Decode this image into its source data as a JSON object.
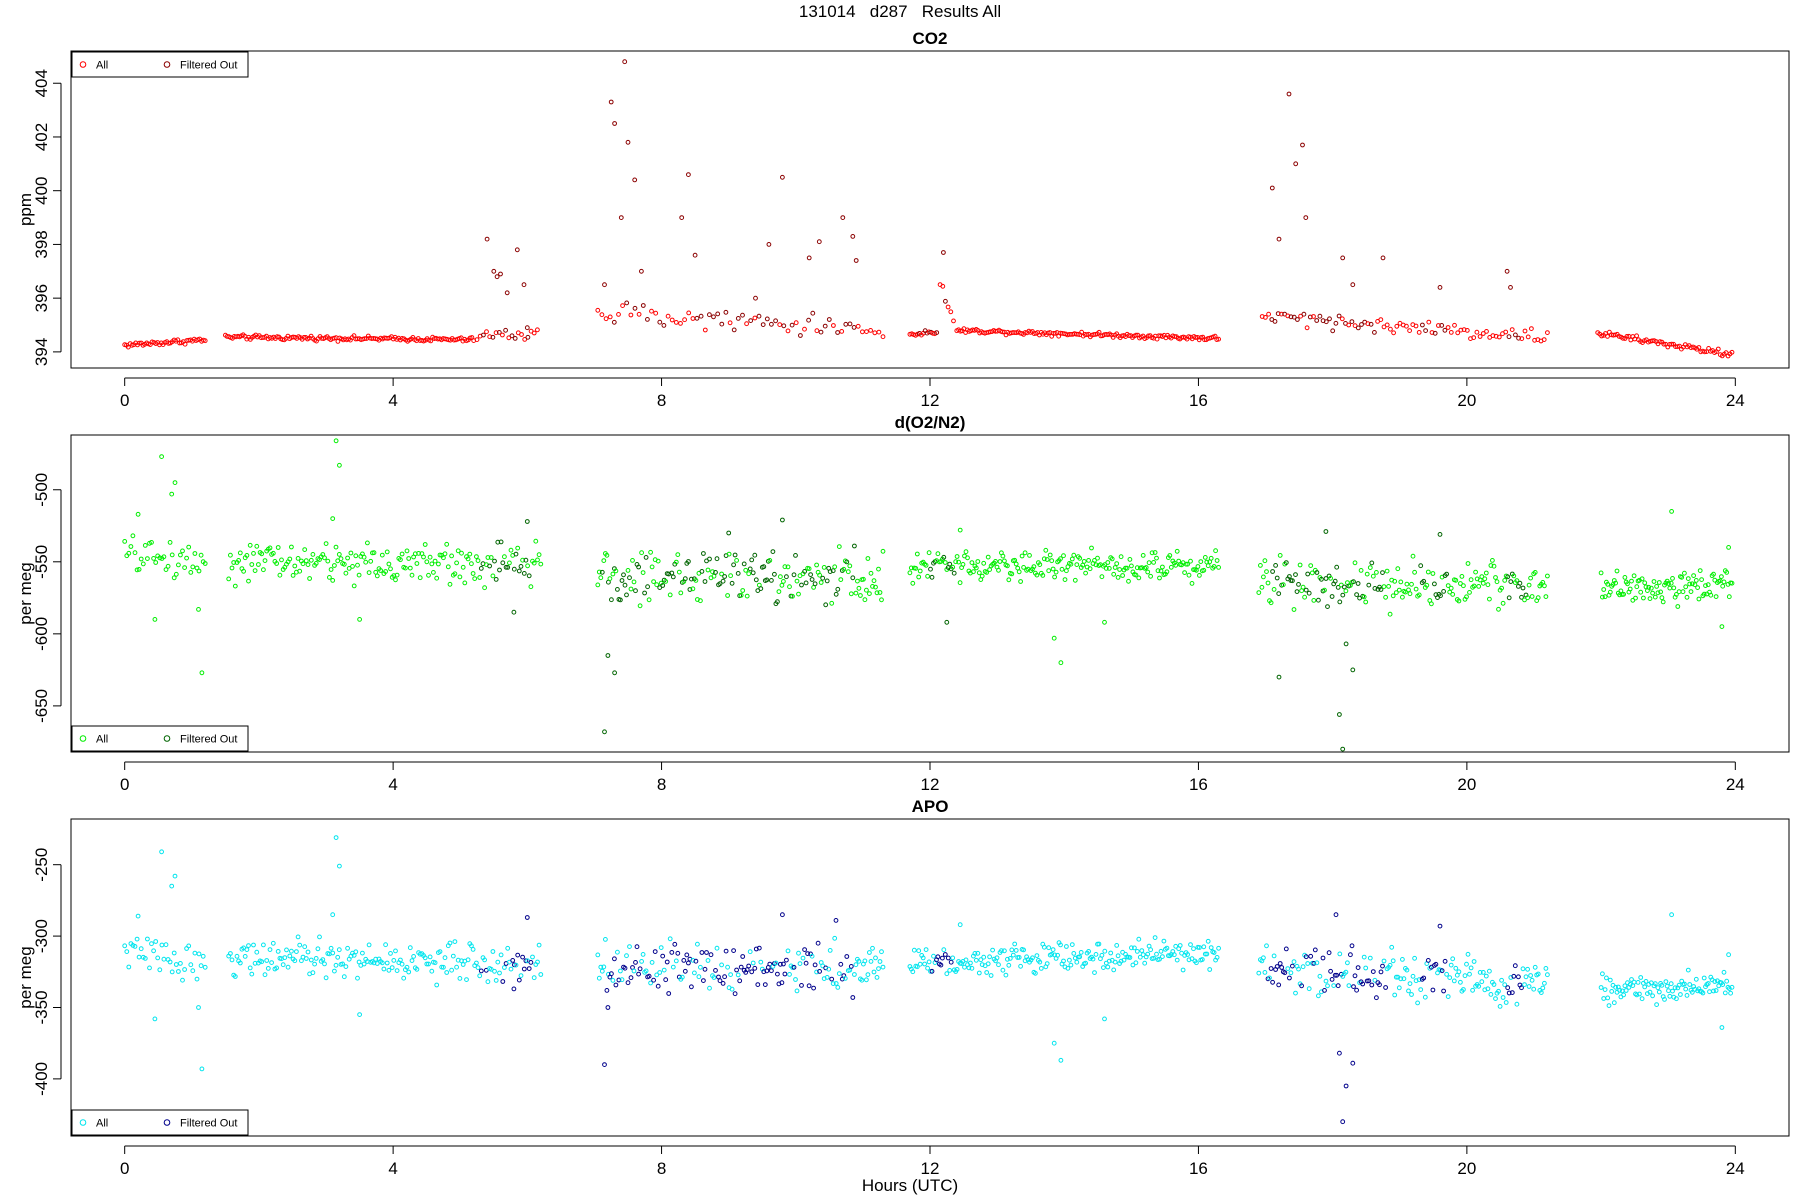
{
  "figure": {
    "title_parts": [
      "131014",
      "d287",
      "Results All"
    ],
    "xlabel": "Hours (UTC)"
  },
  "chart_data": [
    {
      "type": "scatter",
      "title": "CO2",
      "ylabel": "ppm",
      "xlim": [
        -0.8,
        24.8
      ],
      "ylim": [
        393.4,
        405.2
      ],
      "xticks": [
        0,
        4,
        8,
        12,
        16,
        20,
        24
      ],
      "yticks": [
        394,
        396,
        398,
        400,
        402,
        404
      ],
      "grid": false,
      "legend_position": "top-left",
      "series": [
        {
          "name": "All",
          "color": "#ff0000",
          "segments": [
            {
              "x": [
                0.0,
                1.2
              ],
              "base": [
                394.25,
                394.45
              ],
              "noise": 0.07,
              "n": 45,
              "spikes": []
            },
            {
              "x": [
                1.5,
                5.2
              ],
              "base": [
                394.55,
                394.45
              ],
              "noise": 0.06,
              "n": 140,
              "spikes": []
            },
            {
              "x": [
                5.25,
                6.15
              ],
              "base": [
                394.6,
                394.7
              ],
              "noise": 0.15,
              "n": 20,
              "spikes": [
                [
                  5.4,
                  398.2
                ],
                [
                  5.5,
                  397.0
                ],
                [
                  5.55,
                  396.8
                ],
                [
                  5.6,
                  396.9
                ],
                [
                  5.7,
                  396.2
                ],
                [
                  5.85,
                  397.8
                ],
                [
                  5.95,
                  396.5
                ],
                [
                  6.0,
                  394.9
                ]
              ]
            },
            {
              "x": [
                7.05,
                11.3
              ],
              "base": [
                395.5,
                394.8
              ],
              "noise": 0.25,
              "n": 70,
              "spikes": [
                [
                  7.15,
                  396.5
                ],
                [
                  7.25,
                  403.3
                ],
                [
                  7.3,
                  402.5
                ],
                [
                  7.4,
                  399.0
                ],
                [
                  7.45,
                  404.8
                ],
                [
                  7.5,
                  401.8
                ],
                [
                  7.6,
                  400.4
                ],
                [
                  7.7,
                  397.0
                ],
                [
                  8.3,
                  399.0
                ],
                [
                  8.4,
                  400.6
                ],
                [
                  8.5,
                  397.6
                ],
                [
                  9.4,
                  396.0
                ],
                [
                  9.6,
                  398.0
                ],
                [
                  9.8,
                  400.5
                ],
                [
                  10.2,
                  397.5
                ],
                [
                  10.35,
                  398.1
                ],
                [
                  10.7,
                  399.0
                ],
                [
                  10.85,
                  398.3
                ],
                [
                  10.9,
                  397.4
                ]
              ]
            },
            {
              "x": [
                11.7,
                12.1
              ],
              "base": [
                394.65,
                394.75
              ],
              "noise": 0.05,
              "n": 15,
              "spikes": []
            },
            {
              "x": [
                12.15,
                12.35
              ],
              "base": [
                396.5,
                395.2
              ],
              "noise": 0.2,
              "n": 6,
              "spikes": [
                [
                  12.2,
                  397.7
                ]
              ]
            },
            {
              "x": [
                12.4,
                16.3
              ],
              "base": [
                394.8,
                394.5
              ],
              "noise": 0.06,
              "n": 150,
              "spikes": []
            },
            {
              "x": [
                16.95,
                21.2
              ],
              "base": [
                395.3,
                394.55
              ],
              "noise": 0.2,
              "n": 90,
              "spikes": [
                [
                  17.1,
                  400.1
                ],
                [
                  17.2,
                  398.2
                ],
                [
                  17.35,
                  403.6
                ],
                [
                  17.45,
                  401.0
                ],
                [
                  17.55,
                  401.7
                ],
                [
                  17.6,
                  399.0
                ],
                [
                  18.15,
                  397.5
                ],
                [
                  18.3,
                  396.5
                ],
                [
                  18.75,
                  397.5
                ],
                [
                  19.6,
                  396.4
                ],
                [
                  20.6,
                  397.0
                ],
                [
                  20.65,
                  396.4
                ]
              ]
            },
            {
              "x": [
                21.95,
                23.95
              ],
              "base": [
                394.7,
                393.9
              ],
              "noise": 0.08,
              "n": 70,
              "spikes": []
            }
          ]
        }
      ],
      "filtered_series": {
        "name": "Filtered Out",
        "color": "#8b0000",
        "ranges": [
          [
            5.3,
            6.1
          ],
          [
            7.1,
            10.9
          ],
          [
            11.8,
            12.3
          ],
          [
            17.0,
            18.8
          ],
          [
            19.3,
            19.7
          ],
          [
            20.6,
            20.9
          ]
        ]
      }
    },
    {
      "type": "scatter",
      "title": "d(O2/N2)",
      "ylabel": "per meg",
      "xlim": [
        -0.8,
        24.8
      ],
      "ylim": [
        -682,
        -462
      ],
      "xticks": [
        0,
        4,
        8,
        12,
        16,
        20,
        24
      ],
      "yticks": [
        -650,
        -600,
        -550,
        -500
      ],
      "grid": false,
      "legend_position": "bottom-left",
      "series": [
        {
          "name": "All",
          "color": "#00ee00",
          "segments": [
            {
              "x": [
                0.0,
                1.2
              ],
              "base": [
                -545,
                -550
              ],
              "noise": 9,
              "n": 40,
              "spikes": [
                [
                  0.2,
                  -517
                ],
                [
                  0.55,
                  -477
                ],
                [
                  0.7,
                  -503
                ],
                [
                  0.75,
                  -495
                ],
                [
                  0.45,
                  -590
                ],
                [
                  1.15,
                  -627
                ],
                [
                  1.1,
                  -583
                ]
              ]
            },
            {
              "x": [
                1.55,
                6.2
              ],
              "base": [
                -550,
                -552
              ],
              "noise": 10,
              "n": 190,
              "spikes": [
                [
                  3.15,
                  -466
                ],
                [
                  3.2,
                  -483
                ],
                [
                  3.1,
                  -520
                ],
                [
                  3.5,
                  -590
                ],
                [
                  5.8,
                  -585
                ],
                [
                  6.0,
                  -522
                ]
              ]
            },
            {
              "x": [
                7.05,
                11.3
              ],
              "base": [
                -560,
                -560
              ],
              "noise": 13,
              "n": 190,
              "spikes": [
                [
                  7.15,
                  -668
                ],
                [
                  7.2,
                  -615
                ],
                [
                  7.3,
                  -627
                ],
                [
                  9.0,
                  -530
                ],
                [
                  9.8,
                  -521
                ]
              ]
            },
            {
              "x": [
                11.7,
                16.3
              ],
              "base": [
                -553,
                -552
              ],
              "noise": 7,
              "n": 210,
              "spikes": [
                [
                  12.45,
                  -528
                ],
                [
                  13.85,
                  -603
                ],
                [
                  13.95,
                  -620
                ],
                [
                  14.6,
                  -592
                ],
                [
                  12.25,
                  -592
                ]
              ]
            },
            {
              "x": [
                16.9,
                21.2
              ],
              "base": [
                -563,
                -567
              ],
              "noise": 12,
              "n": 190,
              "spikes": [
                [
                  17.2,
                  -630
                ],
                [
                  18.1,
                  -656
                ],
                [
                  18.15,
                  -680
                ],
                [
                  18.2,
                  -607
                ],
                [
                  18.3,
                  -625
                ],
                [
                  17.9,
                  -529
                ],
                [
                  19.6,
                  -531
                ]
              ]
            },
            {
              "x": [
                22.0,
                23.95
              ],
              "base": [
                -570,
                -565
              ],
              "noise": 8,
              "n": 100,
              "spikes": [
                [
                  23.05,
                  -515
                ],
                [
                  23.8,
                  -595
                ],
                [
                  23.9,
                  -540
                ]
              ]
            }
          ]
        }
      ],
      "filtered_series": {
        "name": "Filtered Out",
        "color": "#006400",
        "ranges": [
          [
            5.3,
            6.1
          ],
          [
            7.1,
            10.9
          ],
          [
            12.0,
            12.4
          ],
          [
            17.0,
            18.8
          ],
          [
            19.3,
            19.7
          ],
          [
            20.6,
            20.9
          ]
        ]
      }
    },
    {
      "type": "scatter",
      "title": "APO",
      "ylabel": "per meg",
      "xlim": [
        -0.8,
        24.8
      ],
      "ylim": [
        -440,
        -218
      ],
      "xticks": [
        0,
        4,
        8,
        12,
        16,
        20,
        24
      ],
      "yticks": [
        -400,
        -350,
        -300,
        -250
      ],
      "grid": false,
      "legend_position": "bottom-left",
      "series": [
        {
          "name": "All",
          "color": "#00e5ee",
          "segments": [
            {
              "x": [
                0.0,
                1.2
              ],
              "base": [
                -310,
                -320
              ],
              "noise": 8,
              "n": 40,
              "spikes": [
                [
                  0.2,
                  -286
                ],
                [
                  0.55,
                  -241
                ],
                [
                  0.7,
                  -265
                ],
                [
                  0.75,
                  -258
                ],
                [
                  0.45,
                  -358
                ],
                [
                  1.15,
                  -393
                ],
                [
                  1.1,
                  -350
                ]
              ]
            },
            {
              "x": [
                1.55,
                6.2
              ],
              "base": [
                -315,
                -320
              ],
              "noise": 9,
              "n": 190,
              "spikes": [
                [
                  3.15,
                  -231
                ],
                [
                  3.2,
                  -251
                ],
                [
                  3.1,
                  -285
                ],
                [
                  3.5,
                  -355
                ],
                [
                  5.8,
                  -337
                ],
                [
                  6.0,
                  -287
                ]
              ]
            },
            {
              "x": [
                7.05,
                11.3
              ],
              "base": [
                -320,
                -322
              ],
              "noise": 12,
              "n": 190,
              "spikes": [
                [
                  7.15,
                  -390
                ],
                [
                  7.2,
                  -350
                ],
                [
                  9.8,
                  -285
                ],
                [
                  10.6,
                  -289
                ]
              ]
            },
            {
              "x": [
                11.7,
                16.3
              ],
              "base": [
                -318,
                -312
              ],
              "noise": 7,
              "n": 210,
              "spikes": [
                [
                  12.45,
                  -292
                ],
                [
                  13.85,
                  -375
                ],
                [
                  13.95,
                  -387
                ],
                [
                  14.6,
                  -358
                ]
              ]
            },
            {
              "x": [
                16.9,
                21.2
              ],
              "base": [
                -322,
                -333
              ],
              "noise": 11,
              "n": 190,
              "spikes": [
                [
                  18.1,
                  -382
                ],
                [
                  18.15,
                  -430
                ],
                [
                  18.2,
                  -405
                ],
                [
                  18.3,
                  -389
                ],
                [
                  18.05,
                  -285
                ],
                [
                  19.6,
                  -293
                ]
              ]
            },
            {
              "x": [
                22.0,
                23.95
              ],
              "base": [
                -338,
                -335
              ],
              "noise": 7,
              "n": 100,
              "spikes": [
                [
                  23.05,
                  -285
                ],
                [
                  23.8,
                  -364
                ],
                [
                  23.9,
                  -313
                ]
              ]
            }
          ]
        }
      ],
      "filtered_series": {
        "name": "Filtered Out",
        "color": "#00008b",
        "ranges": [
          [
            5.3,
            6.1
          ],
          [
            7.1,
            10.9
          ],
          [
            12.0,
            12.4
          ],
          [
            17.0,
            18.8
          ],
          [
            19.3,
            19.7
          ],
          [
            20.6,
            20.9
          ]
        ]
      }
    }
  ]
}
